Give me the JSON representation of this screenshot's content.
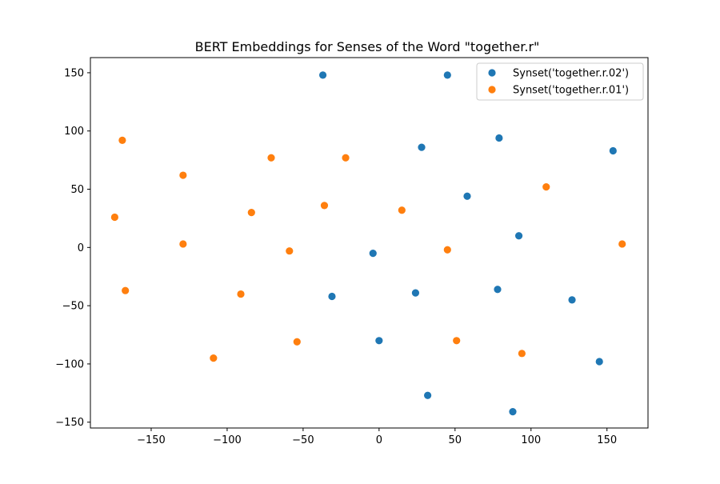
{
  "chart_data": {
    "type": "scatter",
    "title": "BERT Embeddings for Senses of the Word \"together.r\"",
    "xlabel": "",
    "ylabel": "",
    "xlim": [
      -190,
      177
    ],
    "ylim": [
      -155,
      163
    ],
    "x_ticks": [
      -150,
      -100,
      -50,
      0,
      50,
      100,
      150
    ],
    "y_ticks": [
      -150,
      -100,
      -50,
      0,
      50,
      100,
      150
    ],
    "x_tick_labels": [
      "−150",
      "−100",
      "−50",
      "0",
      "50",
      "100",
      "150"
    ],
    "y_tick_labels": [
      "−150",
      "−100",
      "−50",
      "0",
      "50",
      "100",
      "150"
    ],
    "grid": false,
    "legend_position": "top-right",
    "series": [
      {
        "name": "Synset('together.r.02')",
        "color": "#1f77b4",
        "points": [
          {
            "x": -37,
            "y": 148
          },
          {
            "x": 45,
            "y": 148
          },
          {
            "x": 28,
            "y": 86
          },
          {
            "x": 79,
            "y": 94
          },
          {
            "x": 154,
            "y": 83
          },
          {
            "x": 58,
            "y": 44
          },
          {
            "x": 92,
            "y": 10
          },
          {
            "x": -4,
            "y": -5
          },
          {
            "x": -31,
            "y": -42
          },
          {
            "x": 24,
            "y": -39
          },
          {
            "x": 78,
            "y": -36
          },
          {
            "x": 127,
            "y": -45
          },
          {
            "x": 0,
            "y": -80
          },
          {
            "x": 145,
            "y": -98
          },
          {
            "x": 32,
            "y": -127
          },
          {
            "x": 88,
            "y": -141
          }
        ]
      },
      {
        "name": "Synset('together.r.01')",
        "color": "#ff7f0e",
        "points": [
          {
            "x": -169,
            "y": 92
          },
          {
            "x": -129,
            "y": 62
          },
          {
            "x": -71,
            "y": 77
          },
          {
            "x": -22,
            "y": 77
          },
          {
            "x": -174,
            "y": 26
          },
          {
            "x": -84,
            "y": 30
          },
          {
            "x": -36,
            "y": 36
          },
          {
            "x": 15,
            "y": 32
          },
          {
            "x": 110,
            "y": 52
          },
          {
            "x": -129,
            "y": 3
          },
          {
            "x": -59,
            "y": -3
          },
          {
            "x": 45,
            "y": -2
          },
          {
            "x": 160,
            "y": 3
          },
          {
            "x": -167,
            "y": -37
          },
          {
            "x": -91,
            "y": -40
          },
          {
            "x": -109,
            "y": -95
          },
          {
            "x": -54,
            "y": -81
          },
          {
            "x": 51,
            "y": -80
          },
          {
            "x": 94,
            "y": -91
          }
        ]
      }
    ]
  }
}
